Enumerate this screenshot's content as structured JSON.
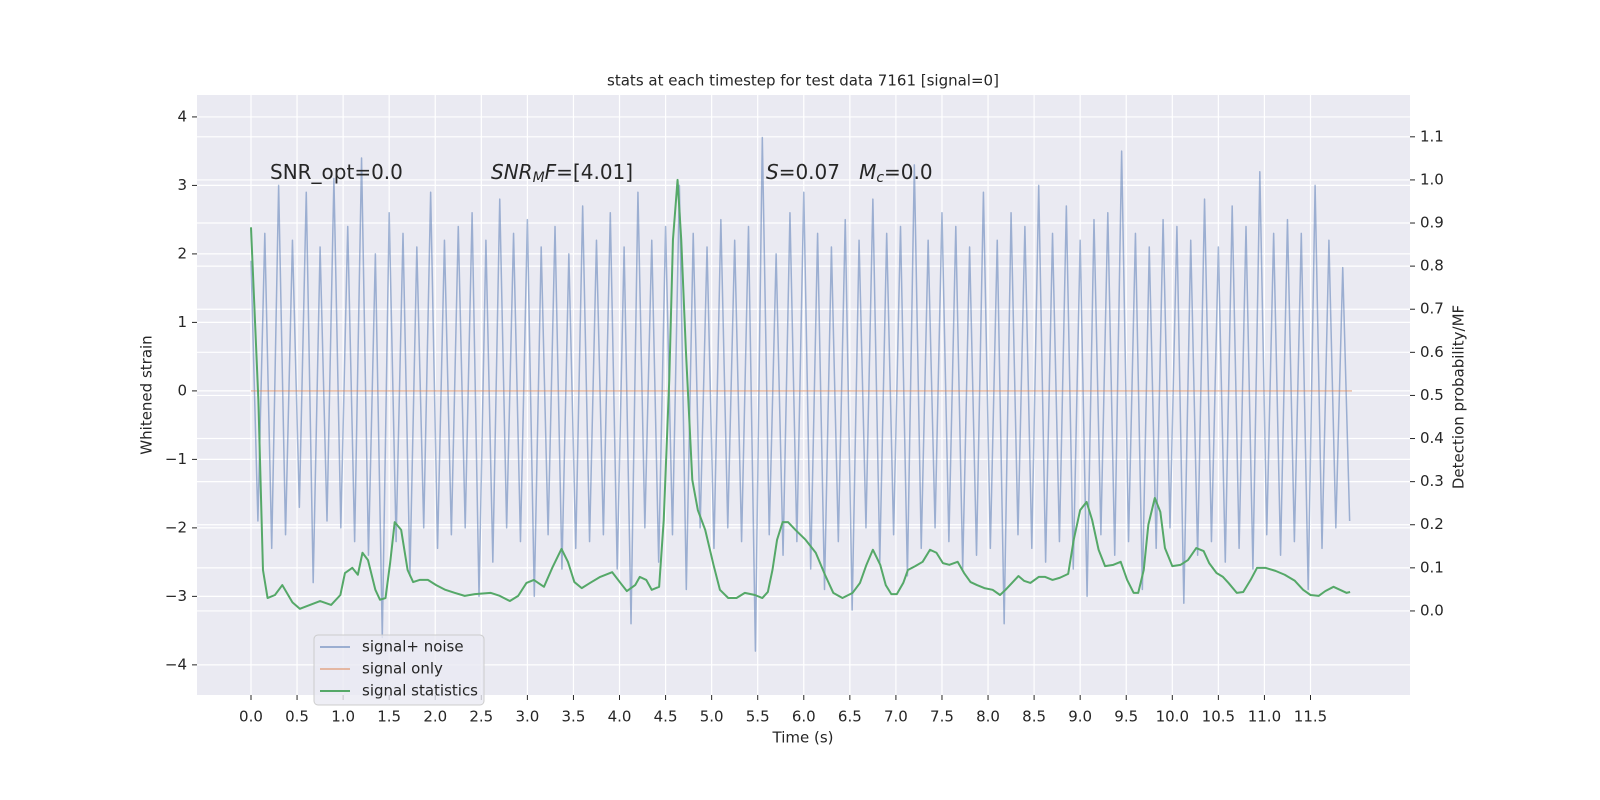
{
  "chart_data": {
    "type": "line",
    "title": "stats at each timestep for test data 7161 [signal=0]",
    "xlabel": "Time (s)",
    "ylabel": "Whitened strain",
    "y2label": "Detection probability/MF",
    "xlim": [
      -0.586,
      12.58
    ],
    "ylim": [
      -4.44,
      4.32
    ],
    "y2lim": [
      -0.195,
      1.197
    ],
    "xticks": [
      {
        "value": 0,
        "label": "0.0"
      },
      0.5,
      {
        "value": 1,
        "label": "1.0"
      },
      1.5,
      {
        "value": 2,
        "label": "2.0"
      },
      2.5,
      {
        "value": 3,
        "label": "3.0"
      },
      3.5,
      {
        "value": 4,
        "label": "4.0"
      },
      4.5,
      {
        "value": 5,
        "label": "5.0"
      },
      5.5,
      {
        "value": 6,
        "label": "6.0"
      },
      6.5,
      {
        "value": 7,
        "label": "7.0"
      },
      7.5,
      {
        "value": 8,
        "label": "8.0"
      },
      8.5,
      {
        "value": 9,
        "label": "9.0"
      },
      9.5,
      {
        "value": 10,
        "label": "10.0"
      },
      10.5,
      {
        "value": 11,
        "label": "11.0"
      },
      11.5
    ],
    "yticks": [
      {
        "value": -4,
        "label": "−4"
      },
      {
        "value": -3,
        "label": "−3"
      },
      {
        "value": -2,
        "label": "−2"
      },
      {
        "value": -1,
        "label": "−1"
      },
      0,
      1,
      2,
      3,
      4
    ],
    "y2ticks": [
      {
        "value": 0,
        "label": "0.0"
      },
      0.1,
      0.2,
      0.3,
      0.4,
      0.5,
      0.6,
      0.7,
      0.8,
      0.9,
      {
        "value": 1,
        "label": "1.0"
      },
      1.1
    ],
    "grid": true,
    "legend": "lower left",
    "annotations": [
      {
        "parts": [
          {
            "text": "SNR_opt=0.0",
            "style": "normal"
          }
        ]
      },
      {
        "parts": [
          {
            "text": "SNR",
            "style": "italic"
          },
          {
            "text": "M",
            "style": "sub"
          },
          {
            "text": "F",
            "style": "italic"
          },
          {
            "text": "=[4.01]",
            "style": "normal"
          }
        ]
      },
      {
        "parts": [
          {
            "text": "S",
            "style": "italic"
          },
          {
            "text": "=0.07   ",
            "style": "normal"
          },
          {
            "text": "M",
            "style": "italic"
          },
          {
            "text": "c",
            "style": "sub"
          },
          {
            "text": "=0.0",
            "style": "normal"
          }
        ]
      }
    ],
    "series": [
      {
        "name": "signal+ noise",
        "color": "#4c72b0",
        "opacity": 0.5,
        "x": [
          0,
          0.075,
          0.15,
          0.225,
          0.3,
          0.375,
          0.45,
          0.525,
          0.6,
          0.675,
          0.75,
          0.825,
          0.9,
          0.975,
          1.05,
          1.125,
          1.2,
          1.275,
          1.35,
          1.425,
          1.5,
          1.575,
          1.65,
          1.725,
          1.8,
          1.875,
          1.95,
          2.025,
          2.1,
          2.175,
          2.25,
          2.325,
          2.4,
          2.475,
          2.55,
          2.625,
          2.7,
          2.775,
          2.85,
          2.925,
          3.0,
          3.075,
          3.15,
          3.225,
          3.3,
          3.375,
          3.45,
          3.525,
          3.6,
          3.675,
          3.75,
          3.825,
          3.9,
          3.975,
          4.05,
          4.125,
          4.2,
          4.275,
          4.35,
          4.425,
          4.5,
          4.575,
          4.65,
          4.725,
          4.8,
          4.875,
          4.95,
          5.025,
          5.1,
          5.175,
          5.25,
          5.325,
          5.4,
          5.475,
          5.55,
          5.625,
          5.7,
          5.775,
          5.85,
          5.925,
          6.0,
          6.075,
          6.15,
          6.225,
          6.3,
          6.375,
          6.45,
          6.525,
          6.6,
          6.675,
          6.75,
          6.825,
          6.9,
          6.975,
          7.05,
          7.125,
          7.2,
          7.275,
          7.35,
          7.425,
          7.5,
          7.575,
          7.65,
          7.725,
          7.8,
          7.875,
          7.95,
          8.025,
          8.1,
          8.175,
          8.25,
          8.325,
          8.4,
          8.475,
          8.55,
          8.625,
          8.7,
          8.775,
          8.85,
          8.925,
          9.0,
          9.075,
          9.15,
          9.225,
          9.3,
          9.375,
          9.45,
          9.525,
          9.6,
          9.675,
          9.75,
          9.825,
          9.9,
          9.975,
          10.05,
          10.125,
          10.2,
          10.275,
          10.35,
          10.425,
          10.5,
          10.575,
          10.65,
          10.725,
          10.8,
          10.875,
          10.95,
          11.025,
          11.1,
          11.175,
          11.25,
          11.325,
          11.4,
          11.475,
          11.55,
          11.625,
          11.7,
          11.775,
          11.85,
          11.925
        ],
        "values": [
          1.9,
          -1.9,
          2.3,
          -2.3,
          3.0,
          -2.1,
          2.2,
          -1.7,
          2.9,
          -2.8,
          2.1,
          -1.9,
          3.1,
          -2.0,
          2.4,
          -2.2,
          3.4,
          -2.4,
          2.0,
          -3.6,
          2.6,
          -2.2,
          2.3,
          -2.7,
          2.1,
          -2.0,
          2.9,
          -2.3,
          2.2,
          -2.1,
          2.4,
          -2.0,
          2.6,
          -3.0,
          2.2,
          -2.5,
          2.8,
          -2.0,
          2.3,
          -2.2,
          2.5,
          -3.0,
          2.1,
          -2.1,
          2.4,
          -2.6,
          2.0,
          -2.3,
          2.7,
          -2.2,
          2.2,
          -2.1,
          2.6,
          -2.6,
          2.1,
          -3.4,
          2.9,
          -2.0,
          2.2,
          -2.5,
          2.4,
          -2.1,
          3.0,
          -2.9,
          2.3,
          -2.0,
          2.1,
          -2.3,
          2.5,
          -2.0,
          2.2,
          -2.2,
          2.4,
          -3.8,
          3.7,
          -2.1,
          2.0,
          -2.4,
          2.6,
          -2.2,
          2.9,
          -2.6,
          2.3,
          -2.9,
          2.1,
          -2.2,
          2.5,
          -3.2,
          2.2,
          -2.0,
          2.8,
          -2.5,
          2.3,
          -2.1,
          2.4,
          -2.7,
          3.3,
          -2.3,
          2.2,
          -2.0,
          2.6,
          -2.2,
          2.4,
          -2.6,
          2.1,
          -2.4,
          2.9,
          -2.3,
          2.2,
          -3.4,
          2.6,
          -2.1,
          2.4,
          -2.3,
          3.0,
          -2.5,
          2.3,
          -2.2,
          2.7,
          -2.6,
          2.2,
          -3.0,
          2.5,
          -2.1,
          2.6,
          -2.4,
          3.5,
          -2.2,
          2.3,
          -2.9,
          2.1,
          -2.3,
          2.5,
          -2.0,
          2.4,
          -3.1,
          2.2,
          -2.4,
          2.8,
          -2.2,
          2.1,
          -2.5,
          2.7,
          -2.3,
          2.4,
          -2.6,
          3.2,
          -2.1,
          2.3,
          -2.4,
          2.5,
          -2.2,
          2.3,
          -2.9,
          3.0,
          -2.3,
          2.2,
          -2.0,
          1.8,
          -1.9
        ]
      },
      {
        "name": "signal only",
        "color": "#dd8452",
        "opacity": 0.5,
        "x": [
          0,
          11.95
        ],
        "values": [
          0,
          0
        ]
      },
      {
        "name": "signal statistics",
        "color": "#55a868",
        "opacity": 1,
        "axis": "y2",
        "x": [
          0,
          0.08,
          0.13,
          0.18,
          0.26,
          0.34,
          0.45,
          0.53,
          0.64,
          0.75,
          0.87,
          0.97,
          1.02,
          1.1,
          1.16,
          1.21,
          1.27,
          1.35,
          1.4,
          1.46,
          1.51,
          1.56,
          1.63,
          1.7,
          1.76,
          1.83,
          1.92,
          2.01,
          2.11,
          2.21,
          2.32,
          2.43,
          2.6,
          2.7,
          2.81,
          2.9,
          2.99,
          3.07,
          3.18,
          3.27,
          3.37,
          3.44,
          3.51,
          3.59,
          3.68,
          3.79,
          3.92,
          4.01,
          4.08,
          4.17,
          4.22,
          4.29,
          4.35,
          4.43,
          4.48,
          4.54,
          4.58,
          4.63,
          4.67,
          4.72,
          4.79,
          4.85,
          4.93,
          5.02,
          5.09,
          5.18,
          5.27,
          5.36,
          5.47,
          5.55,
          5.61,
          5.66,
          5.71,
          5.77,
          5.83,
          5.91,
          6.02,
          6.13,
          6.23,
          6.32,
          6.42,
          6.53,
          6.61,
          6.68,
          6.75,
          6.83,
          6.89,
          6.95,
          7.01,
          7.08,
          7.13,
          7.21,
          7.29,
          7.37,
          7.44,
          7.51,
          7.58,
          7.67,
          7.74,
          7.81,
          7.88,
          7.96,
          8.05,
          8.13,
          8.19,
          8.26,
          8.33,
          8.39,
          8.46,
          8.55,
          8.62,
          8.7,
          8.78,
          8.87,
          8.93,
          9.0,
          9.07,
          9.13,
          9.2,
          9.27,
          9.36,
          9.44,
          9.51,
          9.58,
          9.63,
          9.69,
          9.74,
          9.81,
          9.87,
          9.92,
          10.0,
          10.09,
          10.17,
          10.26,
          10.34,
          10.4,
          10.48,
          10.55,
          10.61,
          10.7,
          10.77,
          10.85,
          10.92,
          11.01,
          11.12,
          11.22,
          11.33,
          11.42,
          11.5,
          11.59,
          11.66,
          11.75,
          11.82,
          11.89,
          11.93
        ],
        "values": [
          0.89,
          0.49,
          0.095,
          0.03,
          0.037,
          0.06,
          0.02,
          0.005,
          0.014,
          0.023,
          0.014,
          0.037,
          0.088,
          0.1,
          0.084,
          0.135,
          0.118,
          0.049,
          0.026,
          0.03,
          0.111,
          0.206,
          0.188,
          0.095,
          0.067,
          0.072,
          0.072,
          0.06,
          0.049,
          0.042,
          0.035,
          0.039,
          0.042,
          0.035,
          0.023,
          0.035,
          0.065,
          0.072,
          0.056,
          0.1,
          0.144,
          0.114,
          0.067,
          0.053,
          0.065,
          0.079,
          0.09,
          0.065,
          0.046,
          0.06,
          0.079,
          0.072,
          0.049,
          0.056,
          0.211,
          0.536,
          0.861,
          1.0,
          0.861,
          0.606,
          0.304,
          0.234,
          0.188,
          0.107,
          0.049,
          0.03,
          0.03,
          0.042,
          0.037,
          0.03,
          0.044,
          0.095,
          0.165,
          0.206,
          0.206,
          0.188,
          0.165,
          0.135,
          0.084,
          0.042,
          0.03,
          0.042,
          0.065,
          0.107,
          0.142,
          0.107,
          0.06,
          0.039,
          0.039,
          0.065,
          0.095,
          0.104,
          0.114,
          0.142,
          0.135,
          0.111,
          0.107,
          0.114,
          0.088,
          0.067,
          0.06,
          0.053,
          0.049,
          0.037,
          0.049,
          0.065,
          0.081,
          0.07,
          0.065,
          0.079,
          0.079,
          0.072,
          0.077,
          0.086,
          0.165,
          0.234,
          0.253,
          0.211,
          0.142,
          0.104,
          0.107,
          0.114,
          0.072,
          0.042,
          0.042,
          0.095,
          0.2,
          0.262,
          0.23,
          0.146,
          0.104,
          0.107,
          0.118,
          0.146,
          0.139,
          0.111,
          0.088,
          0.079,
          0.065,
          0.042,
          0.044,
          0.072,
          0.1,
          0.1,
          0.093,
          0.084,
          0.07,
          0.049,
          0.037,
          0.035,
          0.046,
          0.056,
          0.049,
          0.042,
          0.044
        ]
      }
    ]
  }
}
